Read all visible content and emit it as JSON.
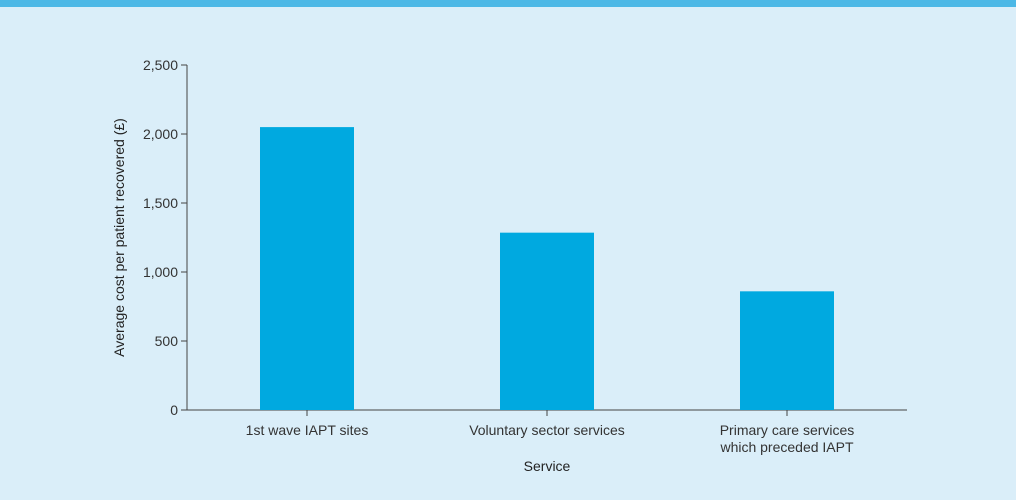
{
  "colors": {
    "background": "#daeef9",
    "stripe": "#4cb8e6",
    "bar": "#00a9e0",
    "axis": "#444444"
  },
  "chart_data": {
    "type": "bar",
    "categories": [
      [
        "1st wave IAPT sites"
      ],
      [
        "Voluntary sector services"
      ],
      [
        "Primary care services",
        "which preceded IAPT"
      ]
    ],
    "values": [
      2050,
      1285,
      860
    ],
    "xlabel": "Service",
    "ylabel": "Average cost per patient recovered (£)",
    "ylim": [
      0,
      2500
    ],
    "yticks": [
      0,
      500,
      1000,
      1500,
      2000,
      2500
    ],
    "ytick_labels": [
      "0",
      "500",
      "1,000",
      "1,500",
      "2,000",
      "2,500"
    ],
    "grid": false,
    "legend": "none"
  }
}
